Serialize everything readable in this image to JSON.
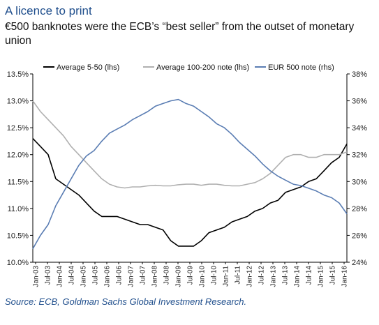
{
  "header": {
    "title": "A licence to print",
    "subtitle": "€500 banknotes were the ECB’s “best seller” from the outset of monetary union"
  },
  "footer": {
    "source": "Source:  ECB, Goldman Sachs Global Investment Research."
  },
  "colors": {
    "title": "#1f4e8c",
    "black_series": "#000000",
    "grey_series": "#b0b0b0",
    "blue_series": "#5a7db3"
  },
  "chart_data": {
    "type": "line",
    "title": "A licence to print",
    "grid": false,
    "legend_position": "top",
    "x_start": "Jan-03",
    "x_labels": [
      "Jan-03",
      "Jul-03",
      "Jan-04",
      "Jul-04",
      "Jan-05",
      "Jul-05",
      "Jan-06",
      "Jul-06",
      "Jan-07",
      "Jul-07",
      "Jan-08",
      "Jul-08",
      "Jan-09",
      "Jul-09",
      "Jan-10",
      "Jul-10",
      "Jan-11",
      "Jul-11",
      "Jan-12",
      "Jul-12",
      "Jan-13",
      "Jul-13",
      "Jan-14",
      "Jul-14",
      "Jan-15",
      "Jul-15",
      "Jan-16"
    ],
    "y_left": {
      "label": "lhs",
      "ylim": [
        10.0,
        13.5
      ],
      "ticks": [
        "10.0%",
        "10.5%",
        "11.0%",
        "11.5%",
        "12.0%",
        "12.5%",
        "13.0%",
        "13.5%"
      ]
    },
    "y_right": {
      "label": "rhs",
      "ylim": [
        24,
        38
      ],
      "ticks": [
        "24%",
        "26%",
        "28%",
        "30%",
        "32%",
        "34%",
        "36%",
        "38%"
      ]
    },
    "series": [
      {
        "name": "Average 5-50 (lhs)",
        "axis": "left",
        "color": "#000000",
        "values": [
          12.3,
          12.15,
          12.0,
          11.55,
          11.45,
          11.35,
          11.25,
          11.1,
          10.95,
          10.85,
          10.85,
          10.85,
          10.8,
          10.75,
          10.7,
          10.7,
          10.65,
          10.6,
          10.4,
          10.3,
          10.3,
          10.3,
          10.4,
          10.55,
          10.6,
          10.65,
          10.75,
          10.8,
          10.85,
          10.95,
          11.0,
          11.1,
          11.15,
          11.3,
          11.35,
          11.4,
          11.5,
          11.55,
          11.7,
          11.85,
          11.95,
          12.2
        ]
      },
      {
        "name": "Average 100-200 note (lhs)",
        "axis": "left",
        "color": "#b0b0b0",
        "values": [
          13.0,
          12.8,
          12.65,
          12.5,
          12.35,
          12.15,
          12.0,
          11.85,
          11.7,
          11.55,
          11.45,
          11.4,
          11.38,
          11.4,
          11.4,
          11.42,
          11.43,
          11.42,
          11.42,
          11.44,
          11.45,
          11.45,
          11.43,
          11.45,
          11.45,
          11.43,
          11.42,
          11.42,
          11.45,
          11.48,
          11.55,
          11.65,
          11.8,
          11.95,
          12.0,
          12.0,
          11.95,
          11.95,
          12.0,
          12.0,
          12.0,
          12.05
        ]
      },
      {
        "name": "EUR 500 note (rhs)",
        "axis": "right",
        "color": "#5a7db3",
        "values": [
          25.0,
          26.0,
          26.8,
          28.2,
          29.2,
          30.2,
          31.2,
          31.9,
          32.3,
          33.0,
          33.6,
          33.9,
          34.2,
          34.6,
          34.9,
          35.2,
          35.6,
          35.8,
          36.0,
          36.1,
          35.8,
          35.6,
          35.2,
          34.8,
          34.3,
          34.0,
          33.5,
          32.9,
          32.4,
          31.9,
          31.3,
          30.8,
          30.4,
          30.1,
          29.8,
          29.7,
          29.5,
          29.3,
          29.0,
          28.8,
          28.4,
          27.6
        ]
      }
    ]
  }
}
